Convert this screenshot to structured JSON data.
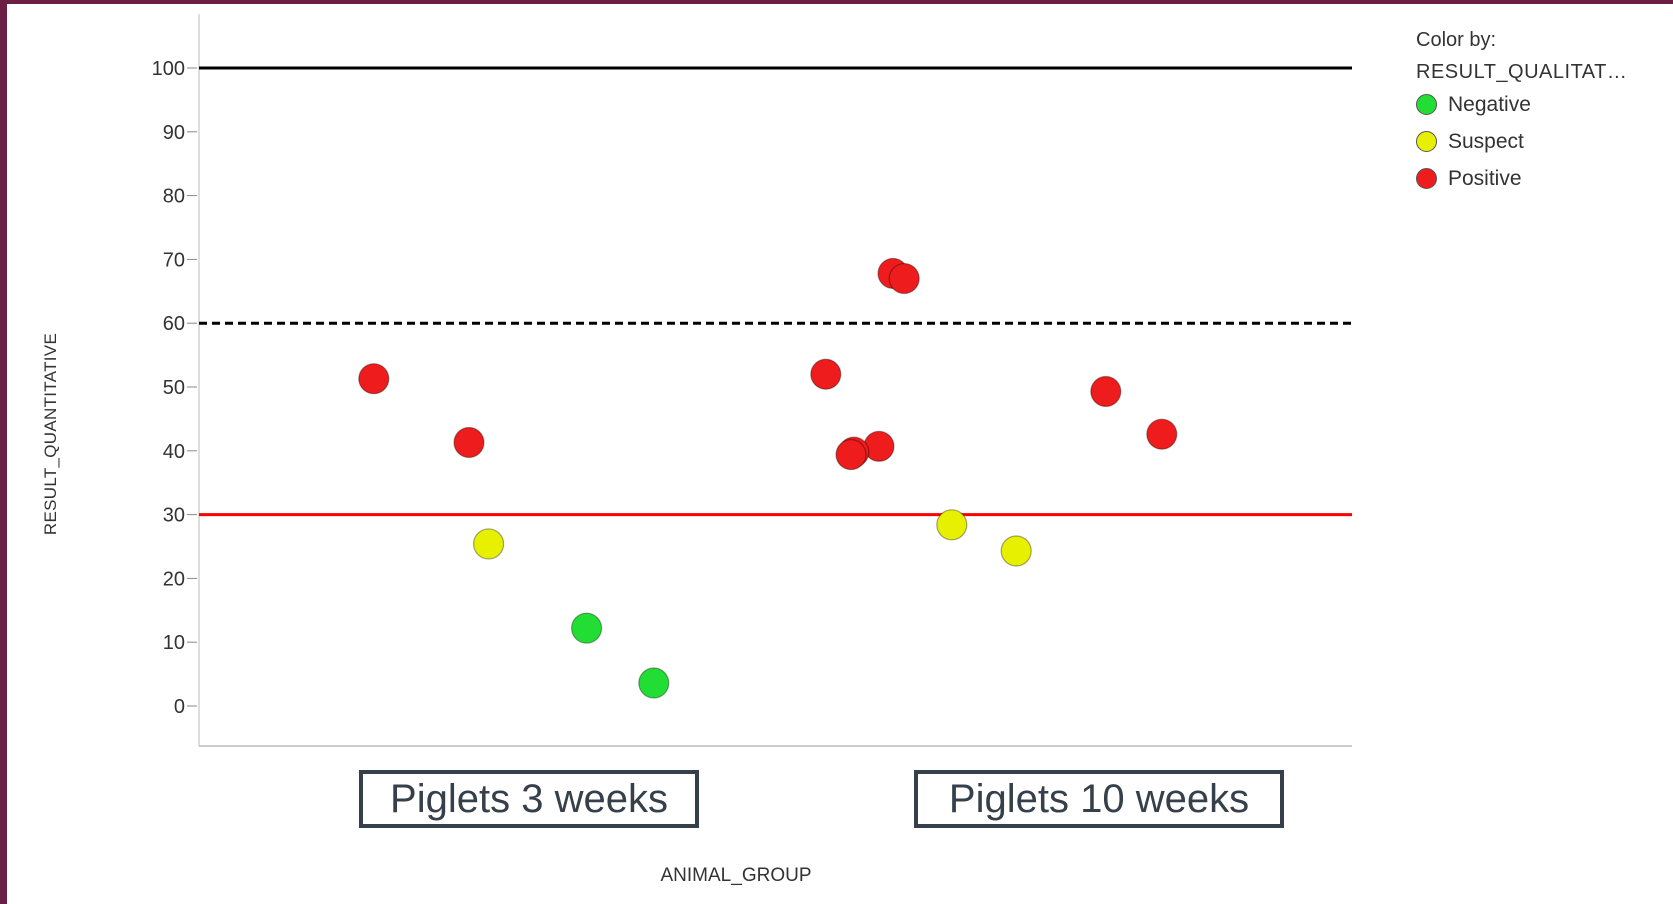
{
  "chart_data": {
    "type": "scatter",
    "title": "",
    "xlabel": "ANIMAL_GROUP",
    "ylabel": "RESULT_QUANTITATIVE",
    "ylim": [
      -6,
      106
    ],
    "yticks": [
      0,
      10,
      20,
      30,
      40,
      50,
      60,
      70,
      80,
      90,
      100
    ],
    "categories": [
      "Piglets 3 weeks",
      "Piglets 10 weeks"
    ],
    "grid": false,
    "legend": {
      "title": "Color by:",
      "field": "RESULT_QUALITAT…",
      "placement": "top-right",
      "entries": [
        {
          "name": "Negative",
          "color": "#22dd33"
        },
        {
          "name": "Suspect",
          "color": "#e6f000"
        },
        {
          "name": "Positive",
          "color": "#ee1c1c"
        }
      ]
    },
    "reference_lines": [
      {
        "y": 100,
        "style": "solid",
        "color": "#000000"
      },
      {
        "y": 60,
        "style": "dashed",
        "color": "#000000"
      },
      {
        "y": 30,
        "style": "solid",
        "color": "#ff0000"
      }
    ],
    "points": [
      {
        "category": "Piglets 3 weeks",
        "jitter": -0.27,
        "y": 51.3,
        "result": "Positive"
      },
      {
        "category": "Piglets 3 weeks",
        "jitter": -0.1,
        "y": 41.3,
        "result": "Positive"
      },
      {
        "category": "Piglets 3 weeks",
        "jitter": -0.065,
        "y": 25.4,
        "result": "Suspect"
      },
      {
        "category": "Piglets 3 weeks",
        "jitter": 0.11,
        "y": 12.2,
        "result": "Negative"
      },
      {
        "category": "Piglets 3 weeks",
        "jitter": 0.23,
        "y": 3.6,
        "result": "Negative"
      },
      {
        "category": "Piglets 10 weeks",
        "jitter": -0.47,
        "y": 52.0,
        "result": "Positive"
      },
      {
        "category": "Piglets 10 weeks",
        "jitter": -0.35,
        "y": 67.8,
        "result": "Positive"
      },
      {
        "category": "Piglets 10 weeks",
        "jitter": -0.33,
        "y": 67.0,
        "result": "Positive"
      },
      {
        "category": "Piglets 10 weeks",
        "jitter": -0.375,
        "y": 40.7,
        "result": "Positive"
      },
      {
        "category": "Piglets 10 weeks",
        "jitter": -0.42,
        "y": 39.8,
        "result": "Positive"
      },
      {
        "category": "Piglets 10 weeks",
        "jitter": -0.425,
        "y": 39.4,
        "result": "Positive"
      },
      {
        "category": "Piglets 10 weeks",
        "jitter": -0.245,
        "y": 28.4,
        "result": "Suspect"
      },
      {
        "category": "Piglets 10 weeks",
        "jitter": -0.13,
        "y": 24.3,
        "result": "Suspect"
      },
      {
        "category": "Piglets 10 weeks",
        "jitter": 0.03,
        "y": 49.3,
        "result": "Positive"
      },
      {
        "category": "Piglets 10 weeks",
        "jitter": 0.13,
        "y": 42.6,
        "result": "Positive"
      }
    ]
  }
}
